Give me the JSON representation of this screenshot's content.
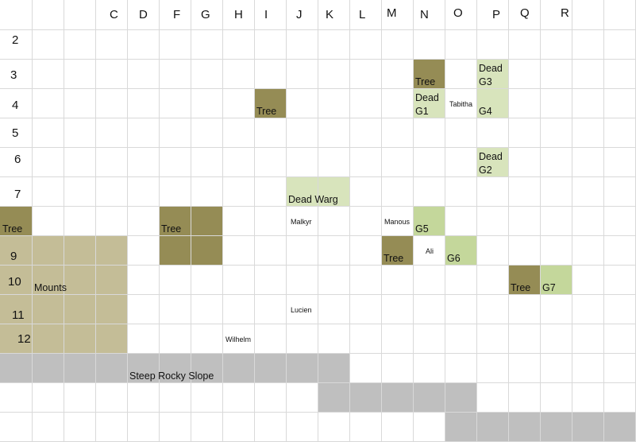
{
  "colors": {
    "tree": "#958c55",
    "dead": "#d8e4bc",
    "group": "#c4d79b",
    "mounts": "#c4bd97",
    "slope": "#bfbfbf",
    "grid": "#d9d9d9"
  },
  "columns": [
    "C",
    "D",
    "F",
    "G",
    "H",
    "I",
    "J",
    "K",
    "L",
    "M",
    "N",
    "O",
    "P",
    "Q",
    "R"
  ],
  "rows": [
    "2",
    "3",
    "4",
    "5",
    "6",
    "7",
    "9",
    "10",
    "11",
    "12"
  ],
  "labels": {
    "tree": "Tree",
    "mounts": "Mounts",
    "slope": "Steep Rocky Slope",
    "dead_warg": "Dead Warg",
    "dead": "Dead",
    "g1": "G1",
    "g2": "G2",
    "g3": "G3",
    "g4": "G4",
    "g5": "G5",
    "g6": "G6",
    "g7": "G7",
    "tabitha": "Tabitha",
    "malkyr": "Malkyr",
    "manous": "Manous",
    "ali": "Ali",
    "lucien": "Lucien",
    "wilhelm": "Wilhelm"
  }
}
